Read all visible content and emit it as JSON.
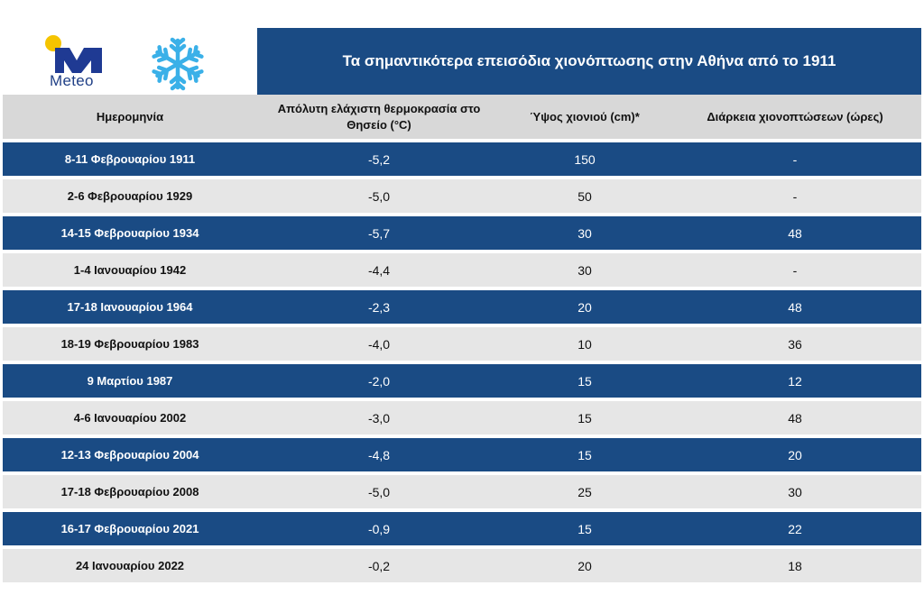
{
  "header": {
    "brand": "Meteo",
    "title": "Τα σημαντικότερα επεισόδια χιονόπτωσης στην Αθήνα από το 1911",
    "colors": {
      "primary": "#1a4b84",
      "accent_sun": "#f5c400",
      "snowflake": "#3ab0e8",
      "header_row": "#d8d8d8",
      "light_row": "#e6e6e6"
    }
  },
  "table": {
    "columns": [
      "Ημερομηνία",
      "Απόλυτη ελάχιστη θερμοκρασία στο Θησείο (°C)",
      "Ύψος χιονιού (cm)*",
      "Διάρκεια χιονοπτώσεων (ώρες)"
    ],
    "rows": [
      {
        "date": "8-11 Φεβρουαρίου 1911",
        "min_temp": "-5,2",
        "snow_depth": "150",
        "duration": "-"
      },
      {
        "date": "2-6 Φεβρουαρίου 1929",
        "min_temp": "-5,0",
        "snow_depth": "50",
        "duration": "-"
      },
      {
        "date": "14-15 Φεβρουαρίου 1934",
        "min_temp": "-5,7",
        "snow_depth": "30",
        "duration": "48"
      },
      {
        "date": "1-4 Ιανουαρίου 1942",
        "min_temp": "-4,4",
        "snow_depth": "30",
        "duration": "-"
      },
      {
        "date": "17-18 Ιανουαρίου 1964",
        "min_temp": "-2,3",
        "snow_depth": "20",
        "duration": "48"
      },
      {
        "date": "18-19 Φεβρουαρίου 1983",
        "min_temp": "-4,0",
        "snow_depth": "10",
        "duration": "36"
      },
      {
        "date": "9 Μαρτίου 1987",
        "min_temp": "-2,0",
        "snow_depth": "15",
        "duration": "12"
      },
      {
        "date": "4-6 Ιανουαρίου 2002",
        "min_temp": "-3,0",
        "snow_depth": "15",
        "duration": "48"
      },
      {
        "date": "12-13 Φεβρουαρίου 2004",
        "min_temp": "-4,8",
        "snow_depth": "15",
        "duration": "20"
      },
      {
        "date": "17-18 Φεβρουαρίου 2008",
        "min_temp": "-5,0",
        "snow_depth": "25",
        "duration": "30"
      },
      {
        "date": "16-17 Φεβρουαρίου 2021",
        "min_temp": "-0,9",
        "snow_depth": "15",
        "duration": "22"
      },
      {
        "date": "24 Ιανουαρίου 2022",
        "min_temp": "-0,2",
        "snow_depth": "20",
        "duration": "18"
      }
    ]
  }
}
